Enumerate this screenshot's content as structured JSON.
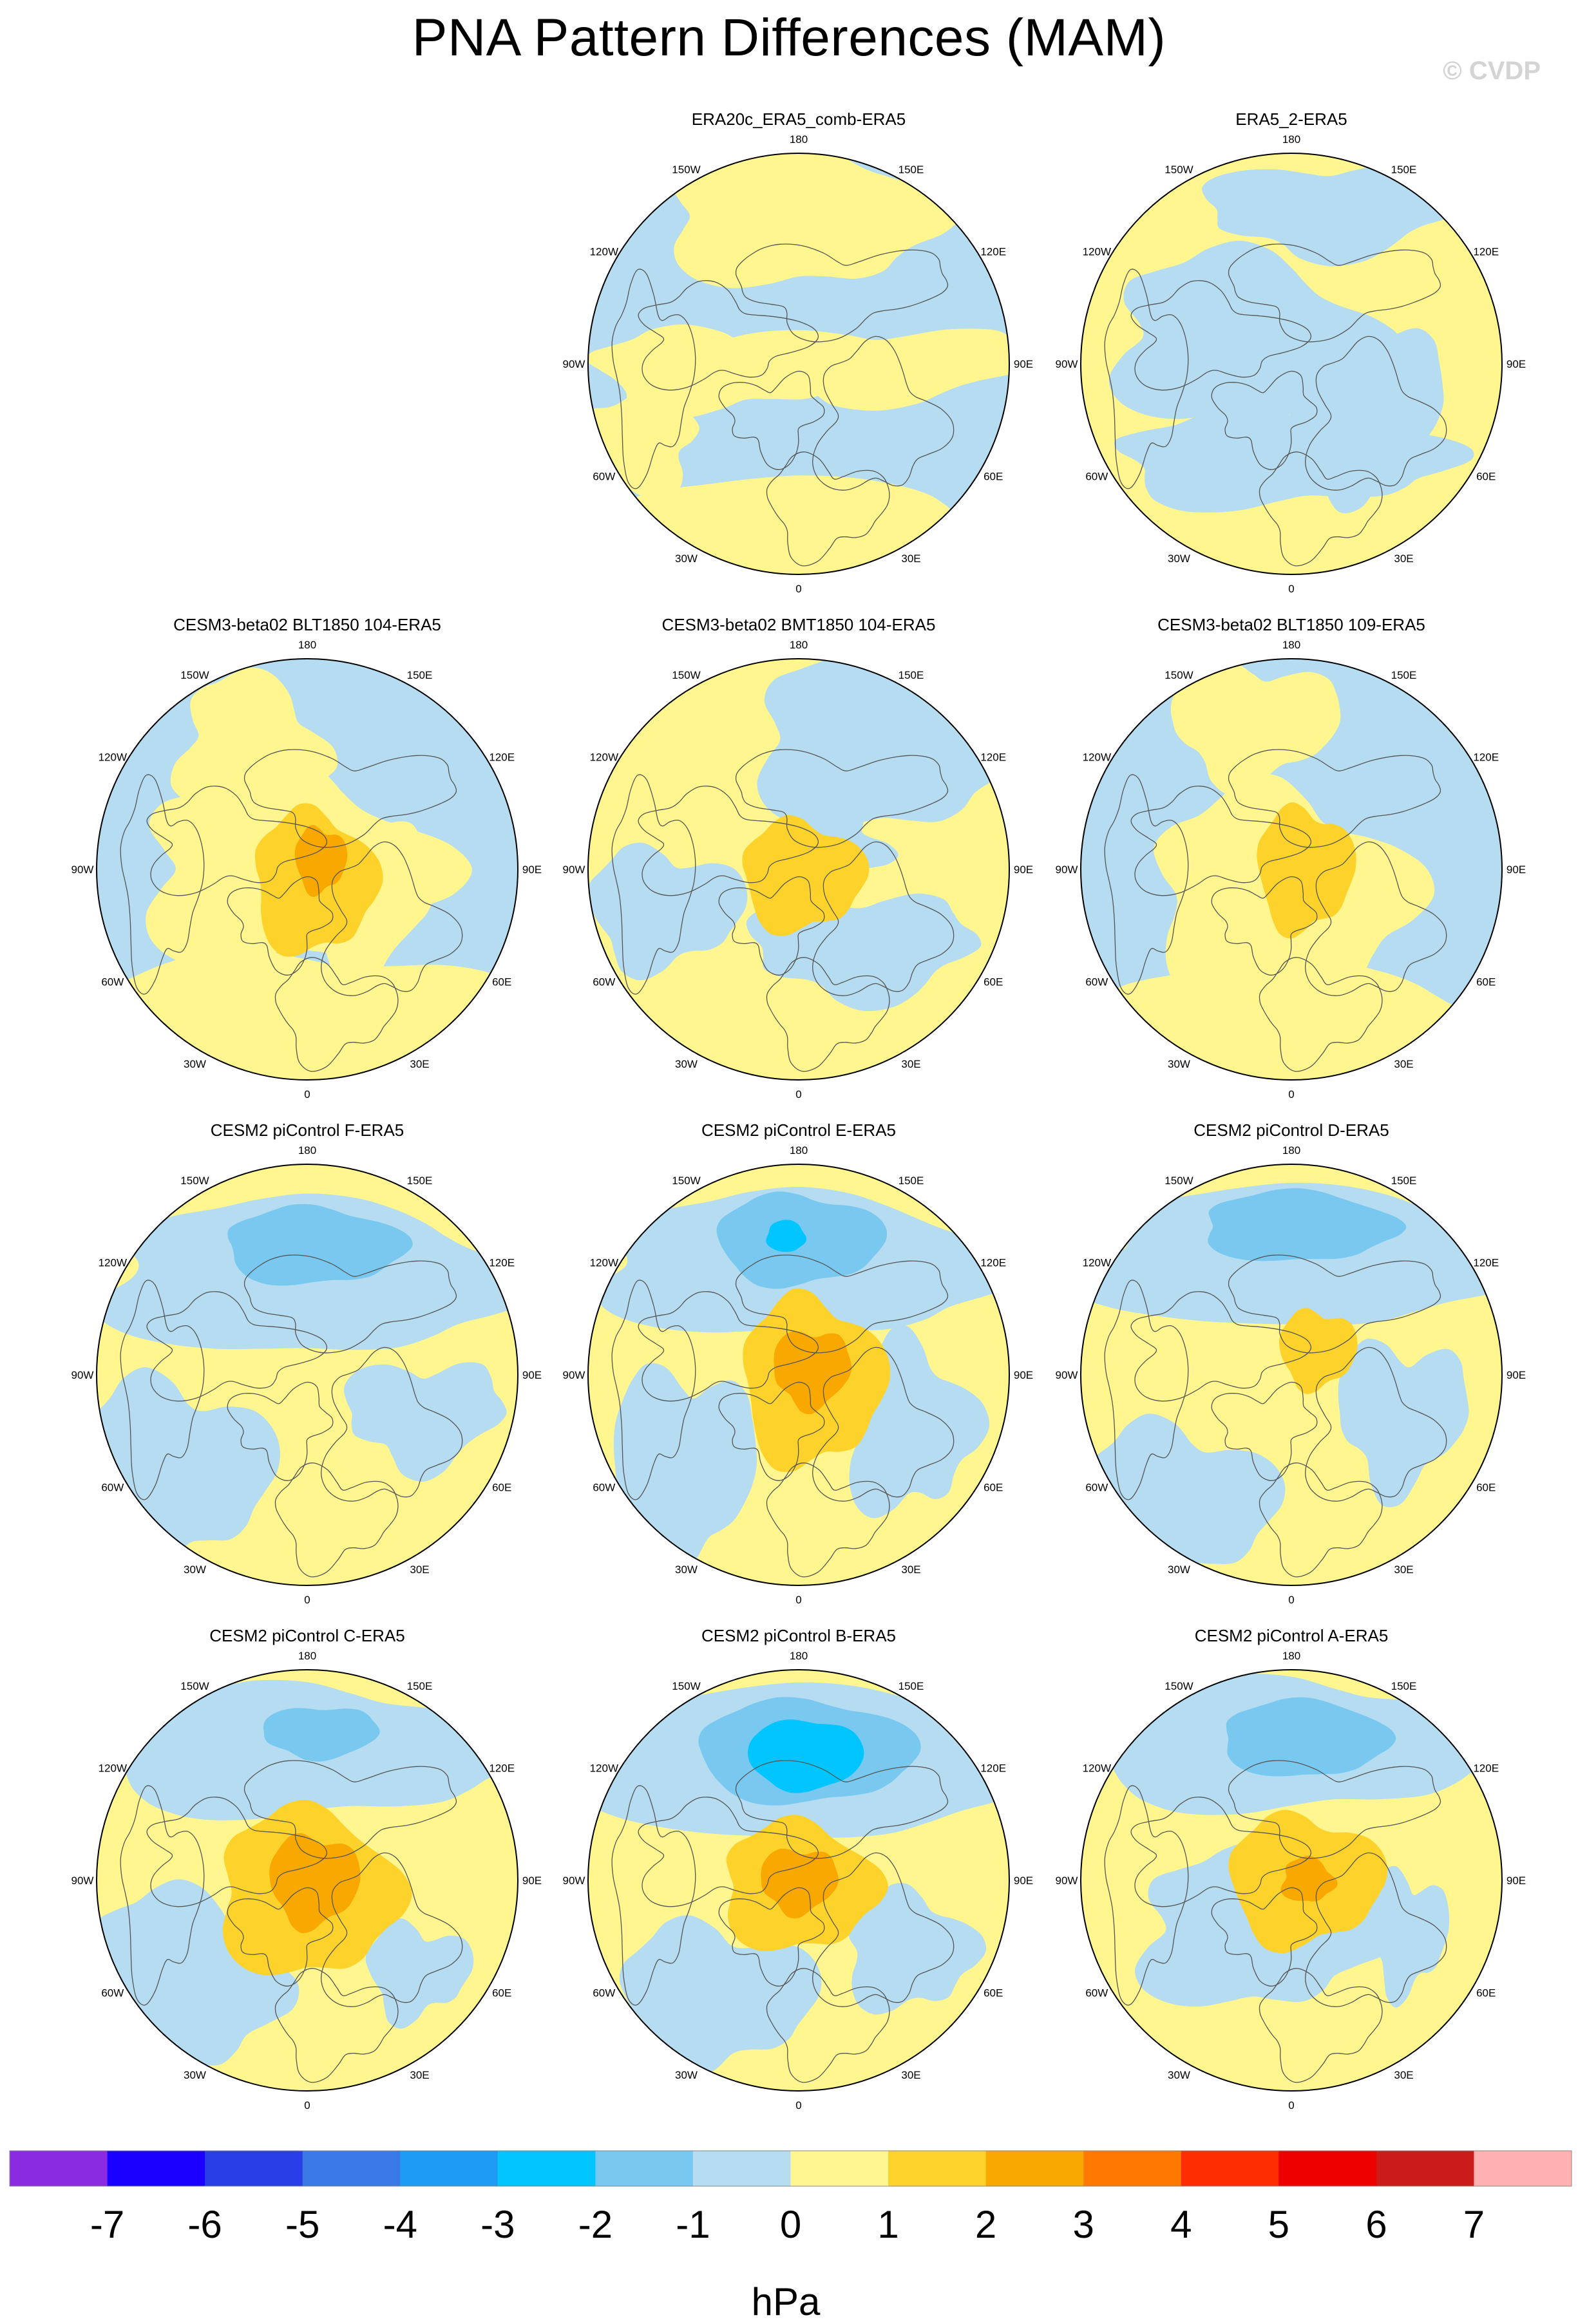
{
  "title": "PNA Pattern Differences (MAM)",
  "watermark": "© CVDP",
  "panels": [
    {
      "title": "ERA20c_ERA5_comb-ERA5",
      "pattern": "era20c"
    },
    {
      "title": "ERA5_2-ERA5",
      "pattern": "era5_2"
    },
    {
      "title": "CESM3-beta02 BLT1850 104-ERA5",
      "pattern": "cesm3a"
    },
    {
      "title": "CESM3-beta02 BMT1850 104-ERA5",
      "pattern": "cesm3b"
    },
    {
      "title": "CESM3-beta02 BLT1850 109-ERA5",
      "pattern": "cesm3c"
    },
    {
      "title": "CESM2 piControl F-ERA5",
      "pattern": "cesm2f"
    },
    {
      "title": "CESM2 piControl E-ERA5",
      "pattern": "cesm2e"
    },
    {
      "title": "CESM2 piControl D-ERA5",
      "pattern": "cesm2d"
    },
    {
      "title": "CESM2 piControl C-ERA5",
      "pattern": "cesm2c"
    },
    {
      "title": "CESM2 piControl B-ERA5",
      "pattern": "cesm2b"
    },
    {
      "title": "CESM2 piControl A-ERA5",
      "pattern": "cesm2a"
    }
  ],
  "longitude_labels": [
    "180",
    "150E",
    "120E",
    "90E",
    "60E",
    "30E",
    "0",
    "30W",
    "60W",
    "90W",
    "120W",
    "150W"
  ],
  "colorbar": {
    "unit": "hPa",
    "tick_labels": [
      "-7",
      "-6",
      "-5",
      "-4",
      "-3",
      "-2",
      "-1",
      "0",
      "1",
      "2",
      "3",
      "4",
      "5",
      "6",
      "7"
    ],
    "colors": [
      "#8a2be2",
      "#1a00ff",
      "#2a3ee8",
      "#3a78e8",
      "#1e9bf5",
      "#00c5ff",
      "#78c8f0",
      "#b5dcf0",
      "#fff68f",
      "#fdd32b",
      "#f9a800",
      "#ff7800",
      "#ff2d00",
      "#ee0000",
      "#cc1b1b",
      "#ffb0b0"
    ]
  }
}
